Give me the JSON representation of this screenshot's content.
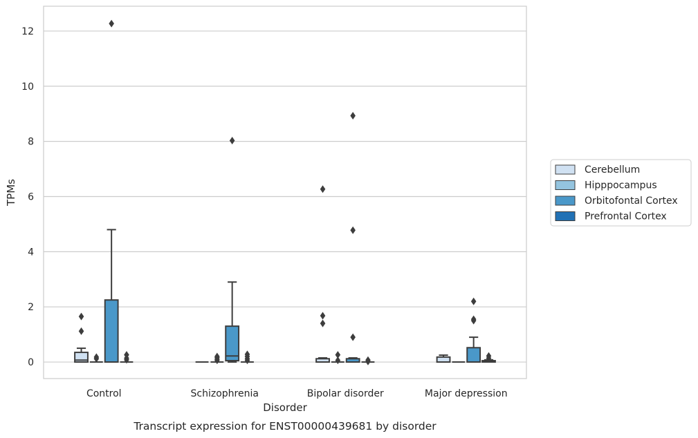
{
  "chart_data": {
    "type": "box",
    "caption": "Transcript expression for ENST00000439681 by disorder",
    "xlabel": "Disorder",
    "ylabel": "TPMs",
    "categories": [
      "Control",
      "Schizophrenia",
      "Bipolar disorder",
      "Major depression"
    ],
    "ylim": [
      -0.6,
      12.9
    ],
    "yticks": [
      0,
      2,
      4,
      6,
      8,
      10,
      12
    ],
    "grid": "horizontal",
    "legend_placement": "center-right, outside plot",
    "colors": {
      "Cerebellum": "#d0e1f2",
      "Hipppocampus": "#94c4df",
      "Orbitofontal Cortex": "#4a98c9",
      "Prefrontal Cortex": "#2171b5",
      "edge": "#3d3d3d",
      "grid": "#cccccc"
    },
    "series": [
      {
        "name": "Cerebellum",
        "boxes": [
          {
            "q1": 0.0,
            "median": 0.07,
            "q3": 0.35,
            "whisker_low": 0.0,
            "whisker_high": 0.5,
            "outliers": [
              1.12,
              1.65
            ]
          },
          {
            "q1": 0.0,
            "median": 0.0,
            "q3": 0.0,
            "whisker_low": 0.0,
            "whisker_high": 0.0,
            "outliers": []
          },
          {
            "q1": 0.0,
            "median": 0.0,
            "q3": 0.12,
            "whisker_low": 0.0,
            "whisker_high": 0.15,
            "outliers": [
              1.4,
              1.68,
              6.27
            ]
          },
          {
            "q1": 0.0,
            "median": 0.0,
            "q3": 0.18,
            "whisker_low": 0.0,
            "whisker_high": 0.25,
            "outliers": []
          }
        ]
      },
      {
        "name": "Hipppocampus",
        "boxes": [
          {
            "q1": 0.0,
            "median": 0.0,
            "q3": 0.0,
            "whisker_low": 0.0,
            "whisker_high": 0.0,
            "outliers": [
              0.12,
              0.18
            ]
          },
          {
            "q1": 0.0,
            "median": 0.0,
            "q3": 0.0,
            "whisker_low": 0.0,
            "whisker_high": 0.0,
            "outliers": [
              0.06,
              0.1,
              0.16,
              0.2
            ]
          },
          {
            "q1": 0.0,
            "median": 0.0,
            "q3": 0.0,
            "whisker_low": 0.0,
            "whisker_high": 0.0,
            "outliers": [
              0.06,
              0.26
            ]
          },
          {
            "q1": 0.0,
            "median": 0.0,
            "q3": 0.0,
            "whisker_low": 0.0,
            "whisker_high": 0.0,
            "outliers": []
          }
        ]
      },
      {
        "name": "Orbitofontal Cortex",
        "boxes": [
          {
            "q1": 0.0,
            "median": 0.0,
            "q3": 2.25,
            "whisker_low": 0.0,
            "whisker_high": 4.8,
            "outliers": [
              12.27
            ]
          },
          {
            "q1": 0.05,
            "median": 0.22,
            "q3": 1.3,
            "whisker_low": 0.0,
            "whisker_high": 2.9,
            "outliers": [
              8.03
            ]
          },
          {
            "q1": 0.0,
            "median": 0.0,
            "q3": 0.12,
            "whisker_low": 0.0,
            "whisker_high": 0.15,
            "outliers": [
              0.9,
              4.78,
              8.93
            ]
          },
          {
            "q1": 0.0,
            "median": 0.0,
            "q3": 0.52,
            "whisker_low": 0.0,
            "whisker_high": 0.9,
            "outliers": [
              1.5,
              1.55,
              2.2
            ]
          }
        ]
      },
      {
        "name": "Prefrontal Cortex",
        "boxes": [
          {
            "q1": 0.0,
            "median": 0.0,
            "q3": 0.0,
            "whisker_low": 0.0,
            "whisker_high": 0.0,
            "outliers": [
              0.08,
              0.14,
              0.26
            ]
          },
          {
            "q1": 0.0,
            "median": 0.0,
            "q3": 0.0,
            "whisker_low": 0.0,
            "whisker_high": 0.0,
            "outliers": [
              0.06,
              0.12,
              0.2,
              0.28
            ]
          },
          {
            "q1": 0.0,
            "median": 0.0,
            "q3": 0.0,
            "whisker_low": 0.0,
            "whisker_high": 0.0,
            "outliers": [
              0.02,
              0.07
            ]
          },
          {
            "q1": 0.0,
            "median": 0.0,
            "q3": 0.05,
            "whisker_low": 0.0,
            "whisker_high": 0.08,
            "outliers": [
              0.14,
              0.22
            ]
          }
        ]
      }
    ]
  }
}
